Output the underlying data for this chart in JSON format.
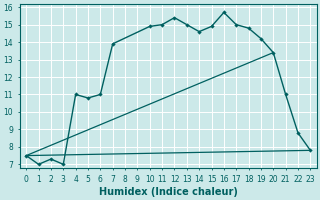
{
  "title": "",
  "xlabel": "Humidex (Indice chaleur)",
  "bg_color": "#cce9e9",
  "grid_color": "#ffffff",
  "line_color": "#006060",
  "xlim": [
    -0.5,
    23.5
  ],
  "ylim": [
    6.8,
    16.2
  ],
  "xticks": [
    0,
    1,
    2,
    3,
    4,
    5,
    6,
    7,
    8,
    9,
    10,
    11,
    12,
    13,
    14,
    15,
    16,
    17,
    18,
    19,
    20,
    21,
    22,
    23
  ],
  "yticks": [
    7,
    8,
    9,
    10,
    11,
    12,
    13,
    14,
    15,
    16
  ],
  "curve_x": [
    0,
    1,
    2,
    3,
    4,
    5,
    6,
    7,
    10,
    11,
    12,
    13,
    14,
    15,
    16,
    17,
    18,
    19,
    20,
    21,
    22,
    23
  ],
  "curve_y": [
    7.5,
    7.0,
    7.3,
    7.0,
    11.0,
    10.8,
    11.0,
    13.9,
    14.9,
    15.0,
    15.4,
    15.0,
    14.6,
    14.9,
    15.7,
    15.0,
    14.8,
    14.2,
    13.4,
    11.0,
    8.8,
    7.8
  ],
  "line1_x": [
    0,
    20
  ],
  "line1_y": [
    7.5,
    13.4
  ],
  "line2_x": [
    0,
    23
  ],
  "line2_y": [
    7.5,
    7.8
  ],
  "tick_fontsize": 5.5,
  "xlabel_fontsize": 7
}
